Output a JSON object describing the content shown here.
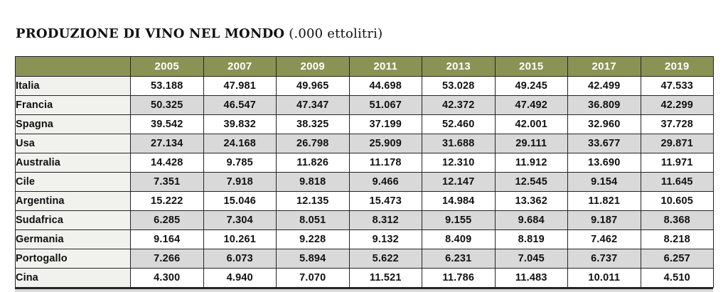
{
  "title": {
    "main": "PRODUZIONE DI VINO NEL MONDO",
    "unit": " (.000 ettolitri)"
  },
  "colors": {
    "header_bg": "#8b9354",
    "header_text": "#ffffff",
    "stripe_row": "#d9d9d9",
    "name_column_bg": "#f1f1ee",
    "border": "#242424"
  },
  "chart_data": {
    "type": "table",
    "title": "PRODUZIONE DI VINO NEL MONDO (.000 ettolitri)",
    "unit_note": ".000 ettolitri",
    "categories": [
      "2005",
      "2007",
      "2009",
      "2011",
      "2013",
      "2015",
      "2017",
      "2019"
    ],
    "series": [
      {
        "name": "Italia",
        "values": [
          "53.188",
          "47.981",
          "49.965",
          "44.698",
          "53.028",
          "49.245",
          "42.499",
          "47.533"
        ]
      },
      {
        "name": "Francia",
        "values": [
          "50.325",
          "46.547",
          "47.347",
          "51.067",
          "42.372",
          "47.492",
          "36.809",
          "42.299"
        ]
      },
      {
        "name": "Spagna",
        "values": [
          "39.542",
          "39.832",
          "38.325",
          "37.199",
          "52.460",
          "42.001",
          "32.960",
          "37.728"
        ]
      },
      {
        "name": "Usa",
        "values": [
          "27.134",
          "24.168",
          "26.798",
          "25.909",
          "31.688",
          "29.111",
          "33.677",
          "29.871"
        ]
      },
      {
        "name": "Australia",
        "values": [
          "14.428",
          "9.785",
          "11.826",
          "11.178",
          "12.310",
          "11.912",
          "13.690",
          "11.971"
        ]
      },
      {
        "name": "Cile",
        "values": [
          "7.351",
          "7.918",
          "9.818",
          "9.466",
          "12.147",
          "12.545",
          "9.154",
          "11.645"
        ]
      },
      {
        "name": "Argentina",
        "values": [
          "15.222",
          "15.046",
          "12.135",
          "15.473",
          "14.984",
          "13.362",
          "11.821",
          "10.605"
        ]
      },
      {
        "name": "Sudafrica",
        "values": [
          "6.285",
          "7.304",
          "8.051",
          "8.312",
          "9.155",
          "9.684",
          "9.187",
          "8.368"
        ]
      },
      {
        "name": "Germania",
        "values": [
          "9.164",
          "10.261",
          "9.228",
          "9.132",
          "8.409",
          "8.819",
          "7.462",
          "8.218"
        ]
      },
      {
        "name": "Portogallo",
        "values": [
          "7.266",
          "6.073",
          "5.894",
          "5.622",
          "6.231",
          "7.045",
          "6.737",
          "6.257"
        ]
      },
      {
        "name": "Cina",
        "values": [
          "4.300",
          "4.940",
          "7.070",
          "11.521",
          "11.786",
          "11.483",
          "10.011",
          "4.510"
        ]
      }
    ],
    "layout": {
      "striped_rows": "even data rows gray, name column always light",
      "grid": true,
      "header_position": "top"
    }
  }
}
